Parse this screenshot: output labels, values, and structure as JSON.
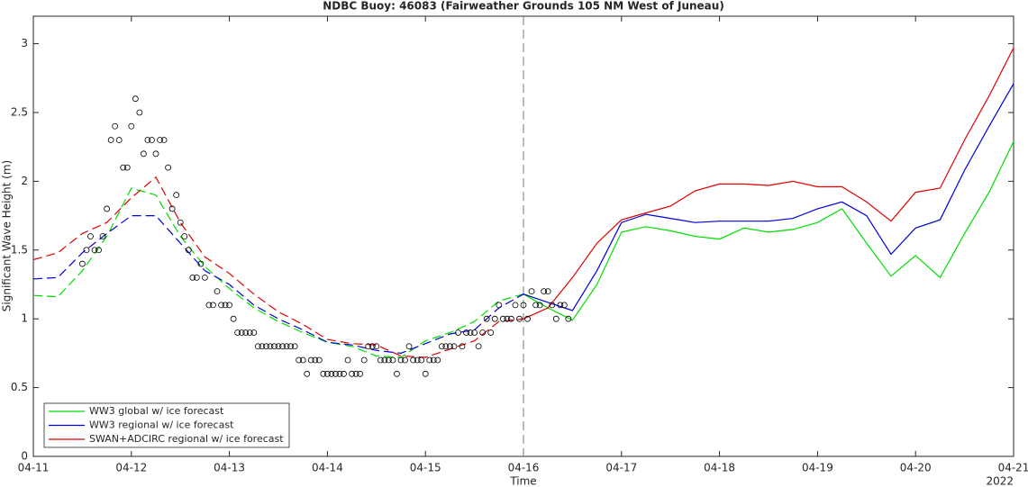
{
  "chart_data": {
    "type": "line",
    "title": "NDBC Buoy: 46083 (Fairweather Grounds 105 NM West of Juneau)",
    "xlabel": "Time",
    "ylabel": "Significant Wave Height (m)",
    "year": "2022",
    "xlim": [
      0,
      240
    ],
    "xticks": [
      {
        "value": 0,
        "label": "04-11"
      },
      {
        "value": 24,
        "label": "04-12"
      },
      {
        "value": 48,
        "label": "04-13"
      },
      {
        "value": 72,
        "label": "04-14"
      },
      {
        "value": 96,
        "label": "04-15"
      },
      {
        "value": 120,
        "label": "04-16"
      },
      {
        "value": 144,
        "label": "04-17"
      },
      {
        "value": 168,
        "label": "04-18"
      },
      {
        "value": 192,
        "label": "04-19"
      },
      {
        "value": 216,
        "label": "04-20"
      },
      {
        "value": 240,
        "label": "04-21"
      }
    ],
    "ylim": [
      0,
      3.2
    ],
    "yticks": [
      0,
      0.5,
      1,
      1.5,
      2,
      2.5,
      3
    ],
    "grid": false,
    "legend": "lower left",
    "forecast_start": 120,
    "x": [
      0,
      6,
      12,
      18,
      24,
      30,
      36,
      42,
      48,
      54,
      60,
      66,
      72,
      78,
      84,
      90,
      96,
      102,
      108,
      114,
      120,
      126,
      132,
      138,
      144,
      150,
      156,
      162,
      168,
      174,
      180,
      186,
      192,
      198,
      204,
      210,
      216,
      222,
      228,
      234,
      240
    ],
    "series": [
      {
        "name": "WW3 global w/ ice forecast",
        "color": "#00dd00",
        "values": [
          1.17,
          1.16,
          1.35,
          1.6,
          1.95,
          1.9,
          1.6,
          1.38,
          1.22,
          1.08,
          0.98,
          0.9,
          0.83,
          0.8,
          0.73,
          0.72,
          0.84,
          0.9,
          0.98,
          1.13,
          1.18,
          1.08,
          0.99,
          1.25,
          1.63,
          1.67,
          1.64,
          1.6,
          1.58,
          1.66,
          1.63,
          1.65,
          1.7,
          1.8,
          1.55,
          1.31,
          1.46,
          1.3,
          1.62,
          1.92,
          2.29
        ]
      },
      {
        "name": "WW3 regional w/ ice forecast",
        "color": "#0000dd",
        "values": [
          1.29,
          1.3,
          1.48,
          1.62,
          1.75,
          1.75,
          1.55,
          1.35,
          1.25,
          1.1,
          1.0,
          0.92,
          0.83,
          0.81,
          0.77,
          0.75,
          0.82,
          0.89,
          0.92,
          1.08,
          1.18,
          1.12,
          1.06,
          1.35,
          1.7,
          1.76,
          1.73,
          1.7,
          1.71,
          1.71,
          1.71,
          1.73,
          1.8,
          1.85,
          1.75,
          1.47,
          1.66,
          1.72,
          2.08,
          2.4,
          2.71
        ]
      },
      {
        "name": "SWAN+ADCIRC regional w/ ice forecast",
        "color": "#dd0000",
        "values": [
          1.43,
          1.48,
          1.62,
          1.7,
          1.88,
          2.03,
          1.7,
          1.45,
          1.33,
          1.18,
          1.05,
          0.96,
          0.85,
          0.82,
          0.81,
          0.73,
          0.72,
          0.78,
          0.84,
          0.98,
          1.0,
          1.08,
          1.3,
          1.55,
          1.72,
          1.77,
          1.82,
          1.93,
          1.98,
          1.98,
          1.97,
          2.0,
          1.96,
          1.96,
          1.85,
          1.71,
          1.92,
          1.95,
          2.3,
          2.62,
          2.97
        ]
      }
    ],
    "observations": {
      "color": "#000000",
      "x": [
        12,
        13,
        14,
        15,
        16,
        17,
        18,
        19,
        20,
        21,
        22,
        23,
        24,
        25,
        26,
        27,
        28,
        29,
        30,
        31,
        32,
        33,
        34,
        35,
        36,
        37,
        38,
        39,
        40,
        41,
        42,
        43,
        44,
        45,
        46,
        47,
        48,
        49,
        50,
        51,
        52,
        53,
        54,
        55,
        56,
        57,
        58,
        59,
        60,
        61,
        62,
        63,
        64,
        65,
        66,
        67,
        68,
        69,
        70,
        71,
        72,
        73,
        74,
        75,
        76,
        77,
        78,
        79,
        80,
        81,
        82,
        83,
        84,
        85,
        86,
        87,
        88,
        89,
        90,
        91,
        92,
        93,
        94,
        95,
        96,
        97,
        98,
        99,
        100,
        101,
        102,
        103,
        104,
        105,
        106,
        107,
        108,
        109,
        110,
        111,
        112,
        113,
        114,
        115,
        116,
        117,
        118,
        119,
        120,
        121,
        122,
        123,
        124,
        125,
        126,
        127,
        128,
        129,
        130,
        131
      ],
      "values": [
        1.4,
        1.5,
        1.6,
        1.5,
        1.5,
        1.6,
        1.8,
        2.3,
        2.4,
        2.3,
        2.1,
        2.1,
        2.4,
        2.6,
        2.5,
        2.2,
        2.3,
        2.3,
        2.2,
        2.3,
        2.3,
        2.1,
        1.8,
        1.9,
        1.7,
        1.6,
        1.5,
        1.3,
        1.3,
        1.4,
        1.3,
        1.1,
        1.1,
        1.2,
        1.1,
        1.1,
        1.1,
        1.0,
        0.9,
        0.9,
        0.9,
        0.9,
        0.9,
        0.8,
        0.8,
        0.8,
        0.8,
        0.8,
        0.8,
        0.8,
        0.8,
        0.8,
        0.8,
        0.7,
        0.7,
        0.6,
        0.7,
        0.7,
        0.7,
        0.6,
        0.6,
        0.6,
        0.6,
        0.6,
        0.6,
        0.7,
        0.6,
        0.6,
        0.6,
        0.7,
        0.8,
        0.8,
        0.8,
        0.7,
        0.7,
        0.7,
        0.7,
        0.6,
        0.7,
        0.7,
        0.8,
        0.7,
        0.7,
        0.7,
        0.6,
        0.7,
        0.7,
        0.7,
        0.8,
        0.8,
        0.8,
        0.8,
        0.9,
        0.8,
        0.9,
        0.9,
        0.9,
        0.8,
        0.9,
        1.0,
        0.9,
        1.0,
        1.1,
        1.0,
        1.0,
        1.0,
        1.1,
        1.0,
        1.1,
        1.0,
        1.2,
        1.1,
        1.1,
        1.2,
        1.2,
        1.1,
        1.0,
        1.1,
        1.1,
        1.0
      ]
    }
  }
}
